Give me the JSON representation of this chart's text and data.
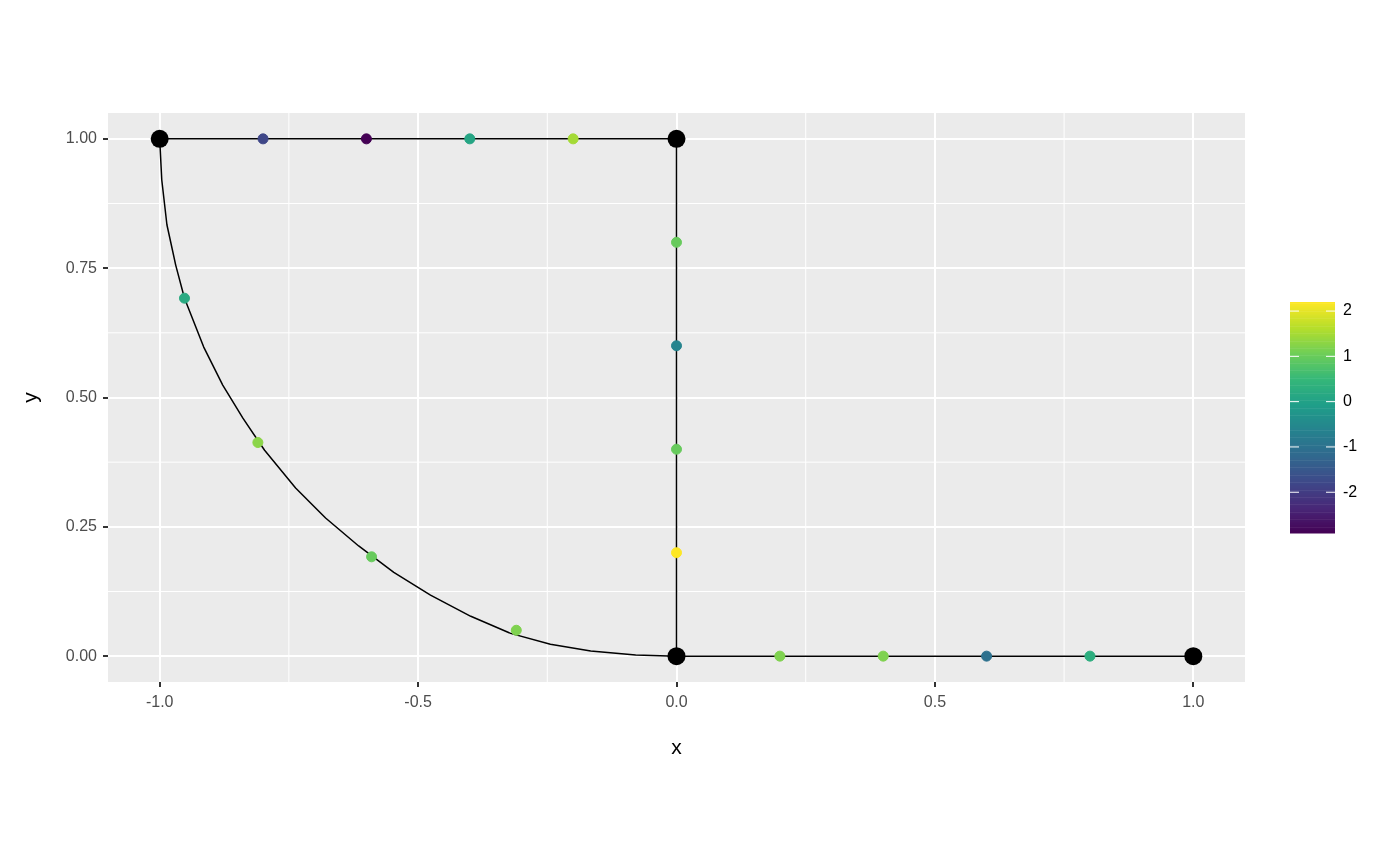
{
  "chart_data": {
    "type": "scatter",
    "xlabel": "x",
    "ylabel": "y",
    "xlim": [
      -1.1,
      1.1
    ],
    "ylim": [
      -0.05,
      1.05
    ],
    "xticks": [
      {
        "value": -1,
        "label": "-1.0"
      },
      {
        "value": -0.5,
        "label": "-0.5"
      },
      {
        "value": 0,
        "label": "0.0"
      },
      {
        "value": 0.5,
        "label": "0.5"
      },
      {
        "value": 1,
        "label": "1.0"
      }
    ],
    "yticks": [
      {
        "value": 0,
        "label": "0.00"
      },
      {
        "value": 0.25,
        "label": "0.25"
      },
      {
        "value": 0.5,
        "label": "0.50"
      },
      {
        "value": 0.75,
        "label": "0.75"
      },
      {
        "value": 1,
        "label": "1.00"
      }
    ],
    "clim": [
      -2.9,
      2.2
    ],
    "cticks": [
      -2,
      -1,
      0,
      1,
      2
    ],
    "grid": true,
    "legend": false,
    "series": [
      {
        "type": "line",
        "color": "#000000",
        "marker": "none",
        "line_style": "solid",
        "x": [
          1,
          0,
          0,
          -1,
          -0.996,
          -0.986,
          -0.969,
          -0.952,
          -0.915,
          -0.878,
          -0.839,
          -0.797,
          -0.737,
          -0.679,
          -0.615,
          -0.547,
          -0.476,
          -0.398,
          -0.321,
          -0.244,
          -0.166,
          -0.079,
          0
        ],
        "values": [
          0,
          0,
          1,
          1,
          0.921,
          0.834,
          0.756,
          0.692,
          0.598,
          0.524,
          0.46,
          0.398,
          0.325,
          0.267,
          0.213,
          0.162,
          0.118,
          0.077,
          0.044,
          0.023,
          0.01,
          0.002,
          0
        ]
      },
      {
        "color": "#000000",
        "marker": "circle",
        "x": [
          -1,
          0,
          0,
          1
        ],
        "values": [
          1,
          1,
          0,
          0
        ]
      },
      {
        "marker": "circle",
        "colors": [
          "#3f4788",
          "#440154",
          "#26a584",
          "#a4da36",
          "#67ca5c",
          "#26848e",
          "#67ca5c",
          "#fde725",
          "#7fd250",
          "#7fd250",
          "#2d718e",
          "#2dae7f",
          "#29aa82",
          "#8bd54a",
          "#67ca5c",
          "#7fd250"
        ],
        "x": [
          -0.8,
          -0.6,
          -0.4,
          -0.2,
          0,
          0,
          0,
          0,
          0.2,
          0.4,
          0.6,
          0.8,
          -0.952,
          -0.81,
          -0.59,
          -0.31
        ],
        "values": [
          1,
          1,
          1,
          1,
          0.8,
          0.6,
          0.4,
          0.2,
          0,
          0,
          0,
          0,
          0.692,
          0.413,
          0.192,
          0.05
        ],
        "cvalues": [
          -1.8,
          -2.9,
          0.1,
          1.5,
          1.0,
          -0.6,
          1.0,
          2.2,
          1.2,
          1.2,
          -1.0,
          0.3,
          0.2,
          1.3,
          1.0,
          1.2
        ]
      }
    ]
  }
}
